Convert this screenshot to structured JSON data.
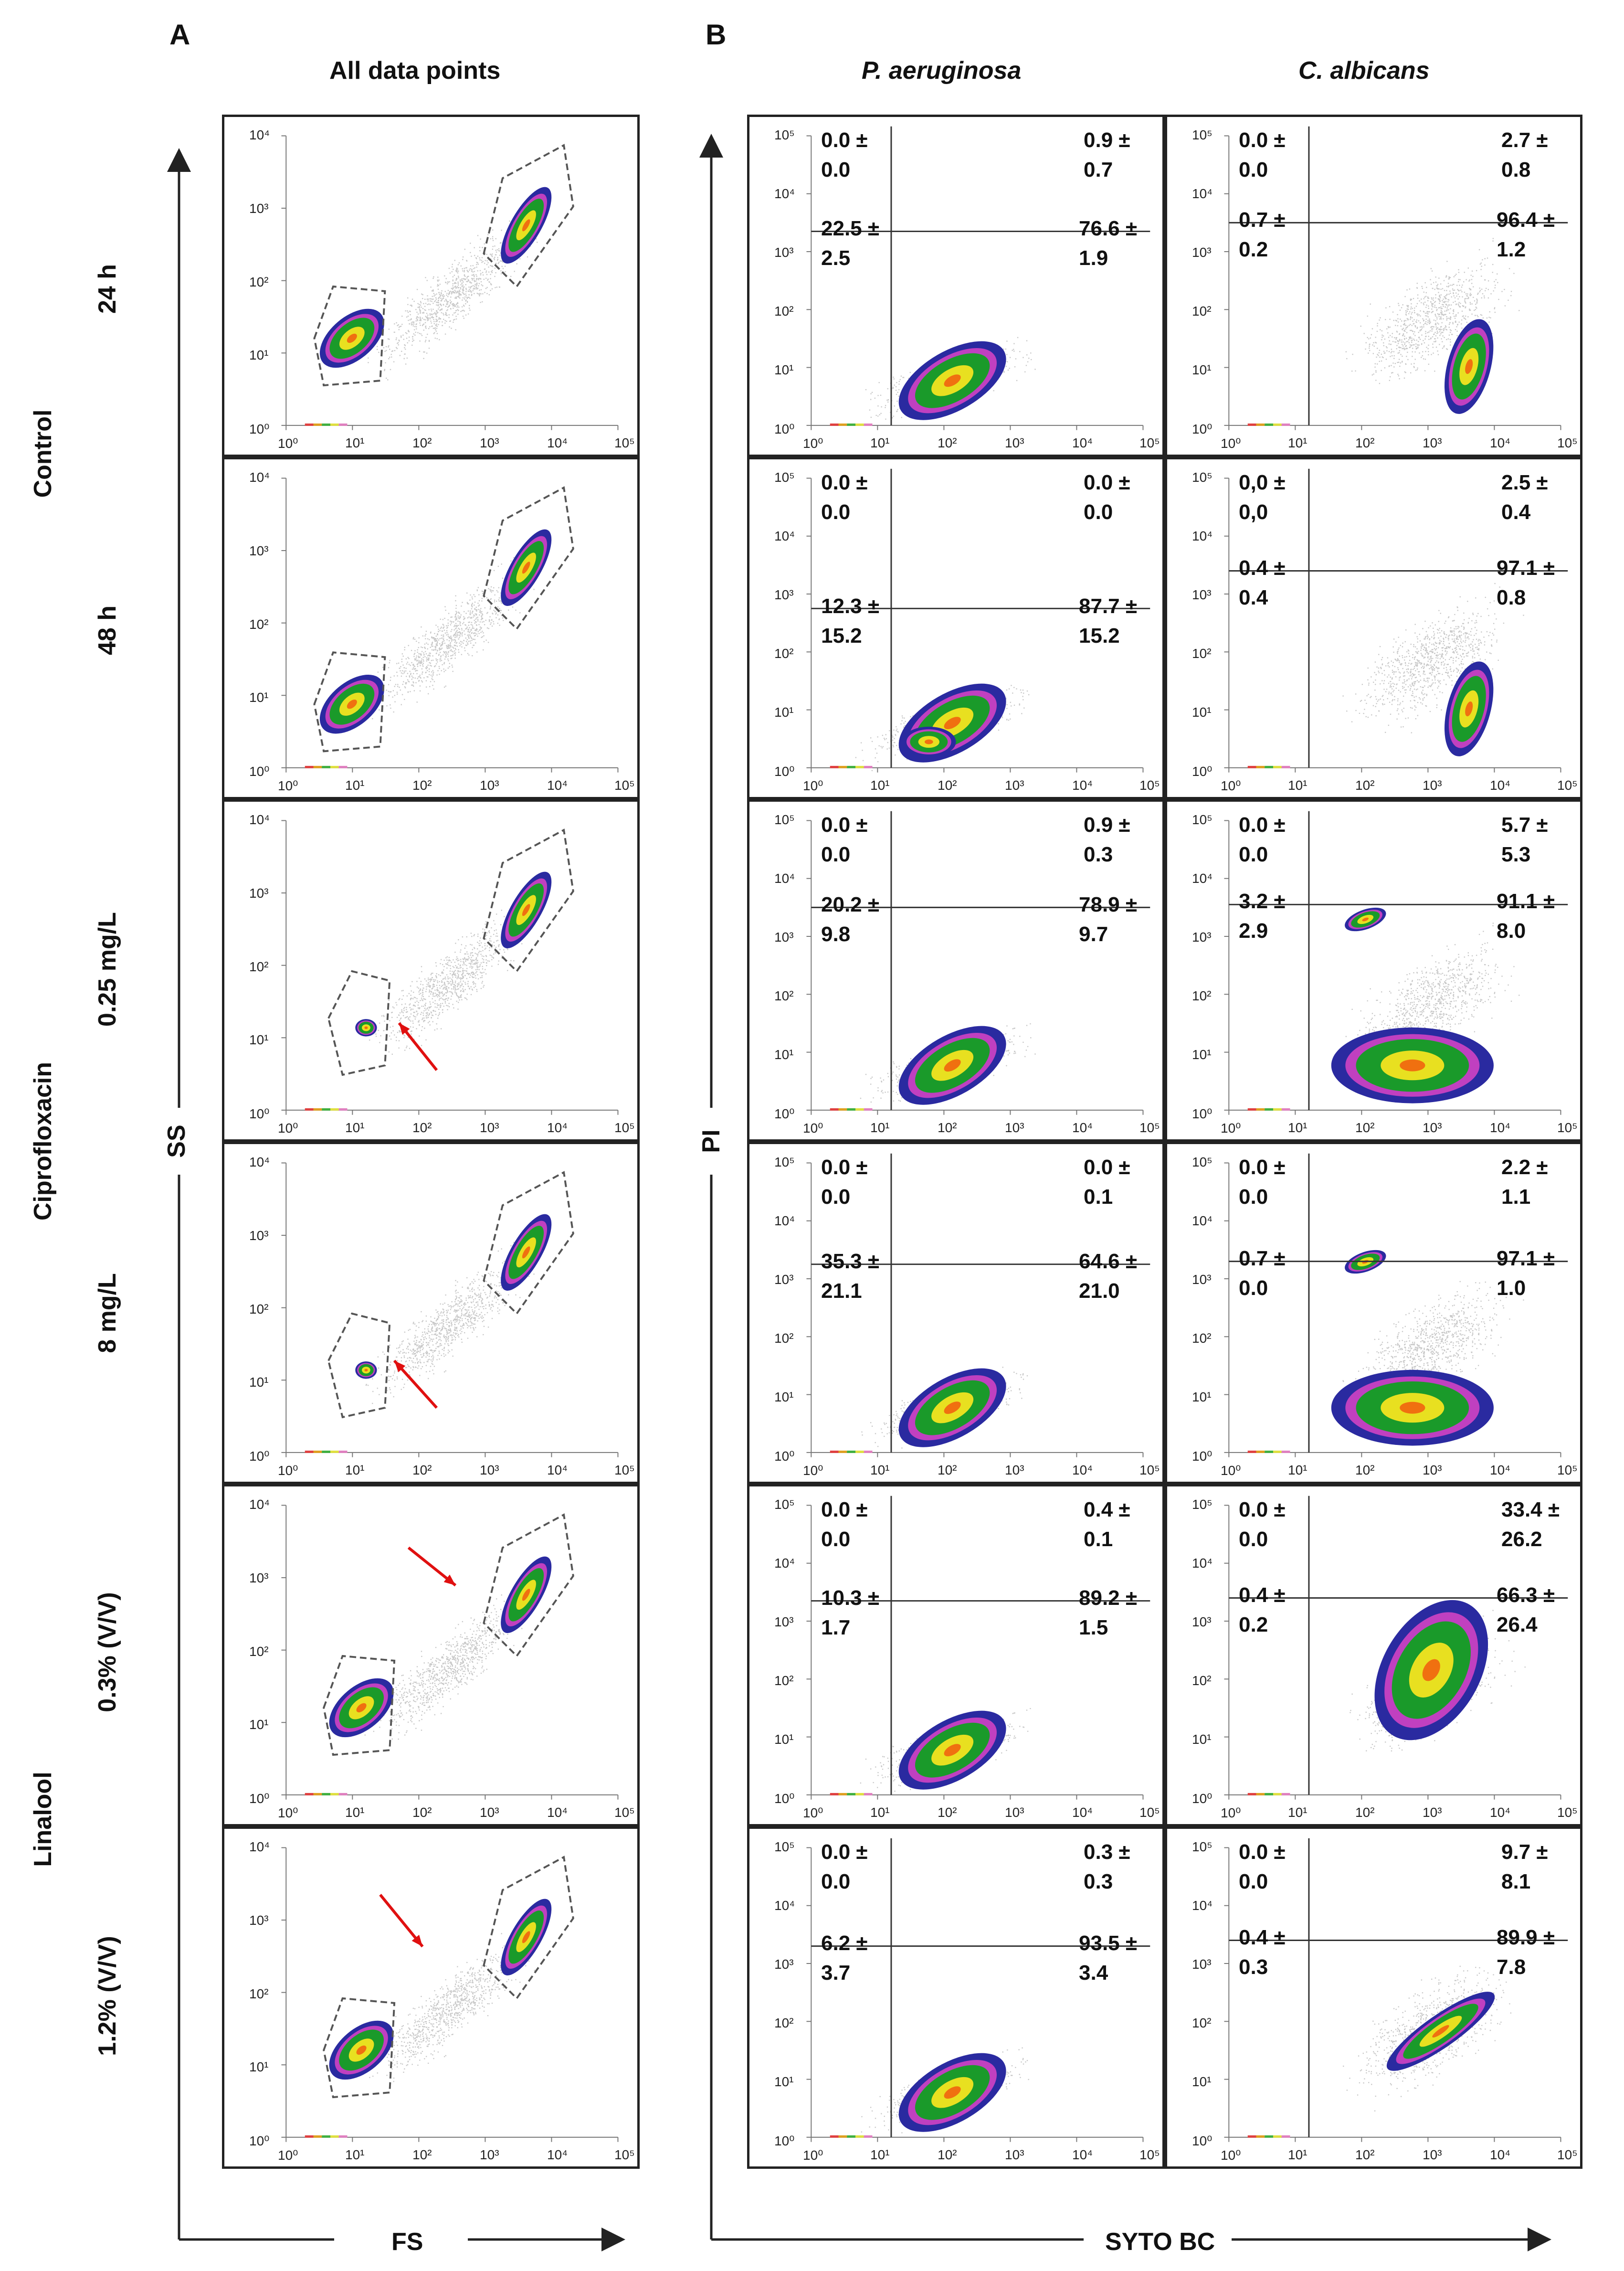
{
  "panel_labels": {
    "a": "A",
    "b": "B"
  },
  "panel_a": {
    "title": "All data points",
    "x_axis": "FS",
    "y_axis": "SS",
    "ticks_x": [
      "10⁰",
      "10¹",
      "10²",
      "10³",
      "10⁴",
      "10⁵"
    ],
    "ticks_y": [
      "10⁰",
      "10¹",
      "10²",
      "10³",
      "10⁴"
    ]
  },
  "panel_b": {
    "columns": [
      "P. aeruginosa",
      "C. albicans"
    ],
    "x_axis": "SYTO BC",
    "y_axis": "PI",
    "ticks_x": [
      "10⁰",
      "10¹",
      "10²",
      "10³",
      "10⁴",
      "10⁵"
    ],
    "ticks_y": [
      "10⁰",
      "10¹",
      "10²",
      "10³",
      "10⁴",
      "10⁵"
    ]
  },
  "groups": [
    "Control",
    "Ciprofloxacin",
    "Linalool"
  ],
  "rows": [
    "24 h",
    "48 h",
    "0.25 mg/L",
    "8 mg/L",
    "0.3% (V/V)",
    "1.2% (V/V)"
  ],
  "colors": {
    "gate": "#555555",
    "arrow": "#e01010",
    "axis": "#222222"
  },
  "arrows": [
    false,
    false,
    true,
    true,
    true,
    true
  ],
  "quadrants": {
    "p_aeruginosa": [
      {
        "ul": [
          "0.0 ±",
          "0.0"
        ],
        "ur": [
          "0.9 ±",
          "0.7"
        ],
        "ll": [
          "22.5 ±",
          "2.5"
        ],
        "lr": [
          "76.6 ±",
          "1.9"
        ]
      },
      {
        "ul": [
          "0.0 ±",
          "0.0"
        ],
        "ur": [
          "0.0 ±",
          "0.0"
        ],
        "ll": [
          "12.3 ±",
          "15.2"
        ],
        "lr": [
          "87.7 ±",
          "15.2"
        ]
      },
      {
        "ul": [
          "0.0 ±",
          "0.0"
        ],
        "ur": [
          "0.9 ±",
          "0.3"
        ],
        "ll": [
          "20.2 ±",
          "9.8"
        ],
        "lr": [
          "78.9 ±",
          "9.7"
        ]
      },
      {
        "ul": [
          "0.0 ±",
          "0.0"
        ],
        "ur": [
          "0.0 ±",
          "0.1"
        ],
        "ll": [
          "35.3 ±",
          "21.1"
        ],
        "lr": [
          "64.6 ±",
          "21.0"
        ]
      },
      {
        "ul": [
          "0.0 ±",
          "0.0"
        ],
        "ur": [
          "0.4 ±",
          "0.1"
        ],
        "ll": [
          "10.3 ±",
          "1.7"
        ],
        "lr": [
          "89.2 ±",
          "1.5"
        ]
      },
      {
        "ul": [
          "0.0 ±",
          "0.0"
        ],
        "ur": [
          "0.3 ±",
          "0.3"
        ],
        "ll": [
          "6.2 ±",
          "3.7"
        ],
        "lr": [
          "93.5 ±",
          "3.4"
        ]
      }
    ],
    "c_albicans": [
      {
        "ul": [
          "0.0 ±",
          "0.0"
        ],
        "ur": [
          "2.7 ±",
          "0.8"
        ],
        "ll": [
          "0.7 ±",
          "0.2"
        ],
        "lr": [
          "96.4 ±",
          "1.2"
        ]
      },
      {
        "ul": [
          "0,0 ±",
          "0,0"
        ],
        "ur": [
          "2.5 ±",
          "0.4"
        ],
        "ll": [
          "0.4 ±",
          "0.4"
        ],
        "lr": [
          "97.1 ±",
          "0.8"
        ]
      },
      {
        "ul": [
          "0.0 ±",
          "0.0"
        ],
        "ur": [
          "5.7 ±",
          "5.3"
        ],
        "ll": [
          "3.2 ±",
          "2.9"
        ],
        "lr": [
          "91.1 ±",
          "8.0"
        ]
      },
      {
        "ul": [
          "0.0 ±",
          "0.0"
        ],
        "ur": [
          "2.2 ±",
          "1.1"
        ],
        "ll": [
          "0.7 ±",
          "0.0"
        ],
        "lr": [
          "97.1 ±",
          "1.0"
        ]
      },
      {
        "ul": [
          "0.0 ±",
          "0.0"
        ],
        "ur": [
          "33.4 ±",
          "26.2"
        ],
        "ll": [
          "0.4 ±",
          "0.2"
        ],
        "lr": [
          "66.3 ±",
          "26.4"
        ]
      },
      {
        "ul": [
          "0.0 ±",
          "0.0"
        ],
        "ur": [
          "9.7 ±",
          "8.1"
        ],
        "ll": [
          "0.4 ±",
          "0.3"
        ],
        "lr": [
          "89.9 ±",
          "7.8"
        ]
      }
    ]
  }
}
